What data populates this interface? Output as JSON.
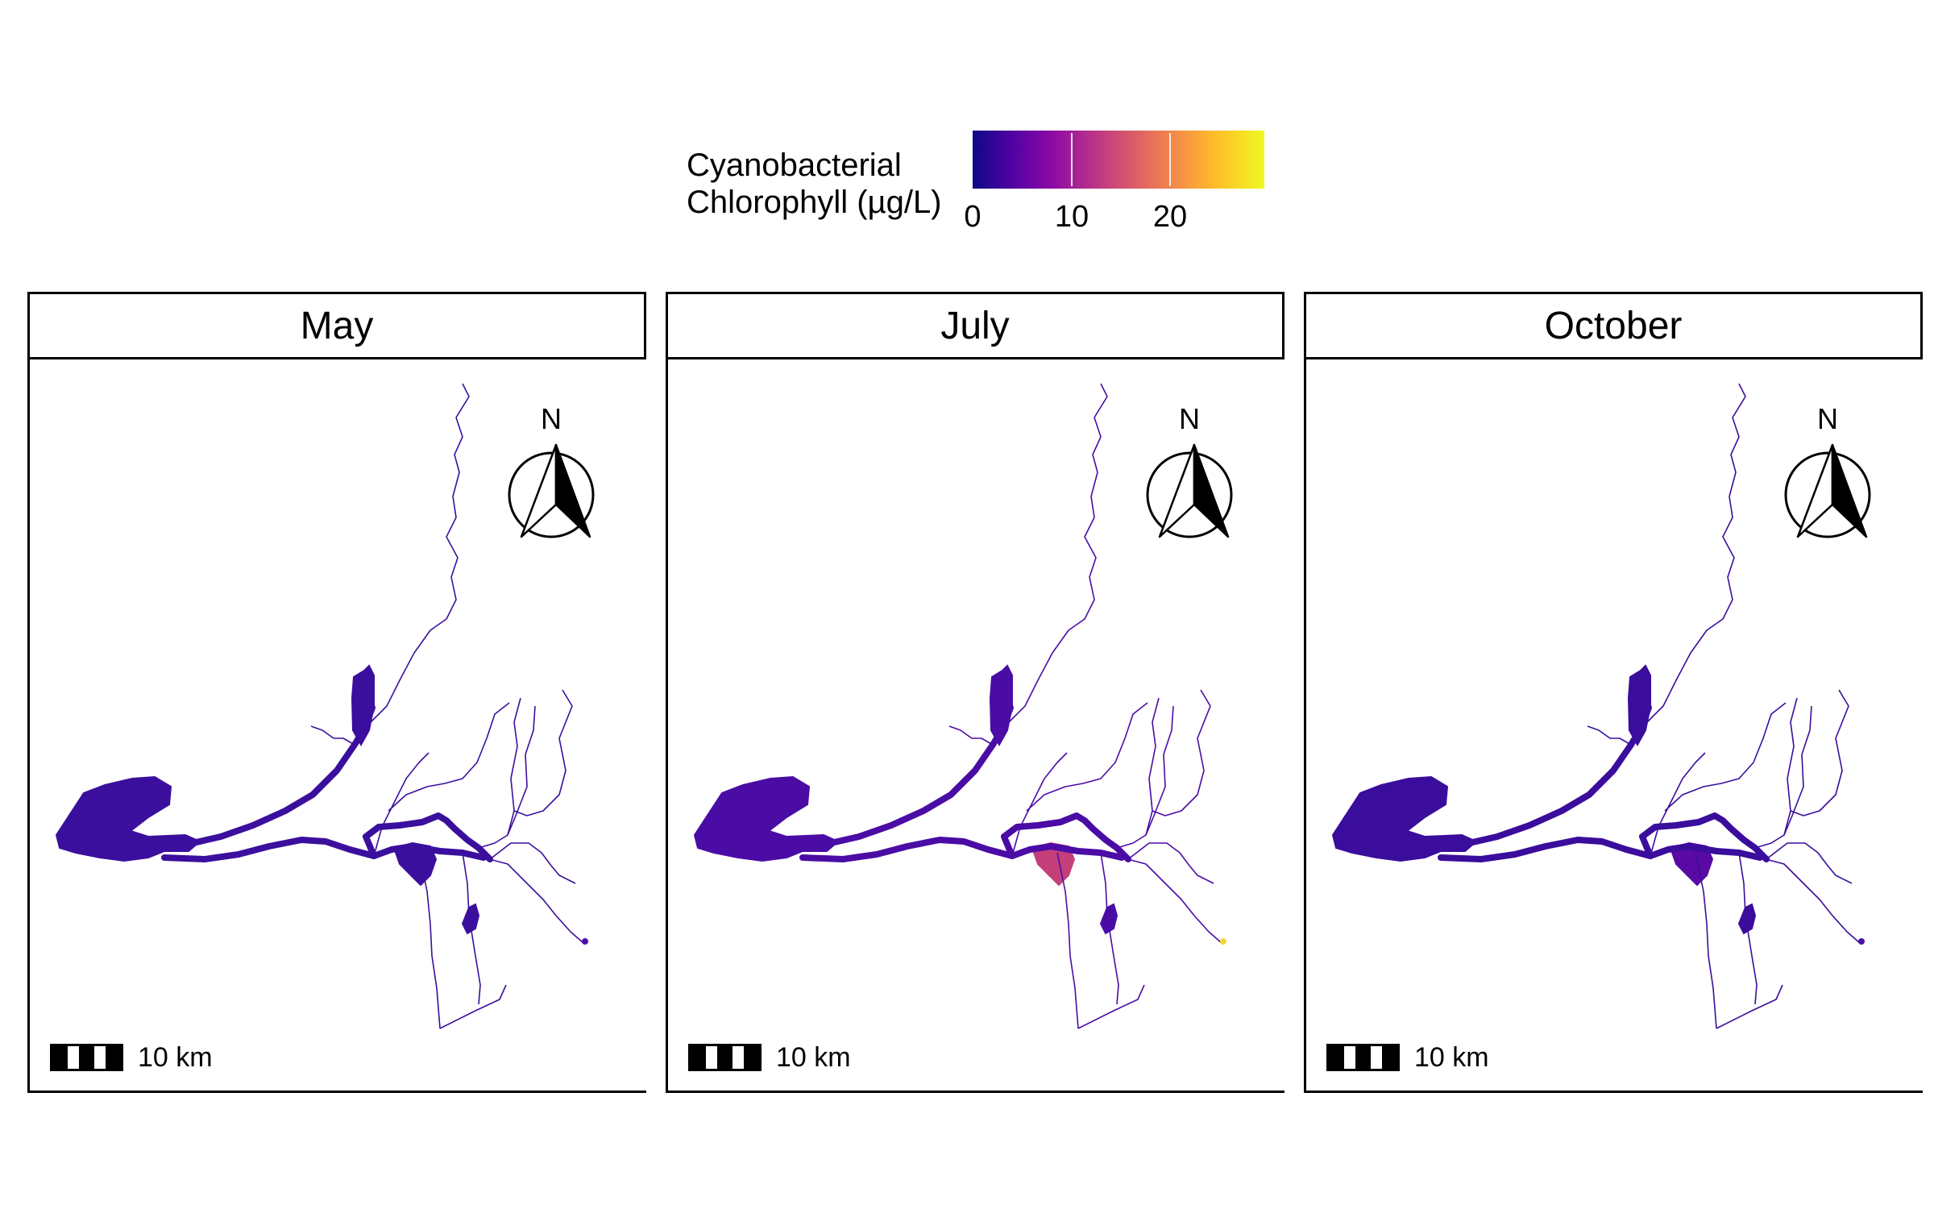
{
  "legend": {
    "title_line1": "Cyanobacterial",
    "title_line2": "Chlorophyll (µg/L)",
    "ticks": [
      {
        "label": "0",
        "value": 0
      },
      {
        "label": "10",
        "value": 10
      },
      {
        "label": "20",
        "value": 20
      }
    ],
    "range": [
      0,
      29
    ],
    "palette": "plasma",
    "colors": [
      "#0d0887",
      "#5302a3",
      "#8b0aa5",
      "#b83289",
      "#db5c68",
      "#f48849",
      "#febc2a",
      "#f0f921"
    ]
  },
  "panels": [
    {
      "title": "May",
      "scale_label": "10 km",
      "north_label": "N",
      "water_color": "#3b0f9e",
      "hotspot_color": "#3b0f9e",
      "tip_color": "#4a10a6"
    },
    {
      "title": "July",
      "scale_label": "10 km",
      "north_label": "N",
      "water_color": "#4a0ca5",
      "hotspot_color": "#c43f7a",
      "tip_color": "#f3d53a"
    },
    {
      "title": "October",
      "scale_label": "10 km",
      "north_label": "N",
      "water_color": "#3a0d9c",
      "hotspot_color": "#5a0aa4",
      "tip_color": "#4a10a6"
    }
  ]
}
